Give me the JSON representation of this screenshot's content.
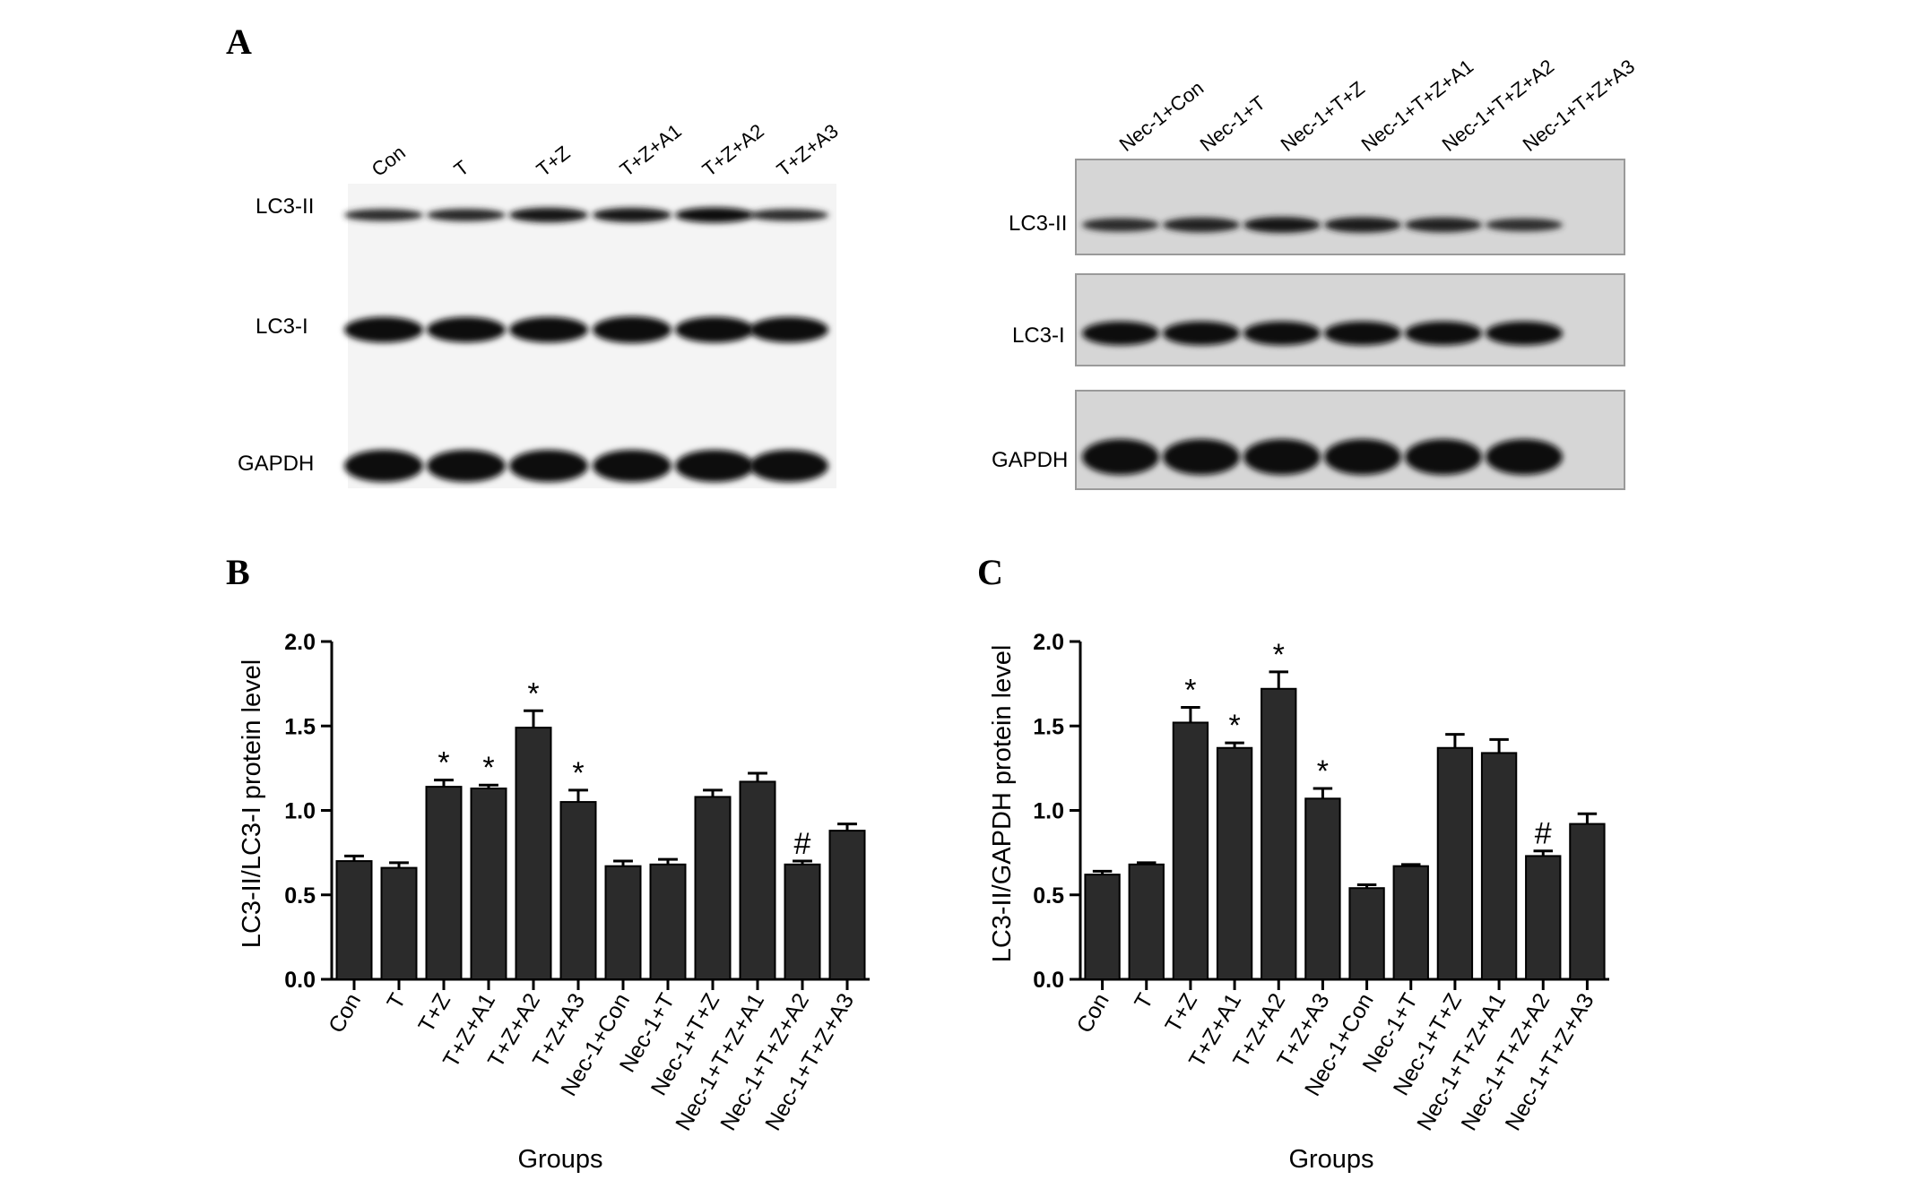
{
  "panel_letters": {
    "a": "A",
    "b": "B",
    "c": "C"
  },
  "blot_left": {
    "lanes": [
      "Con",
      "T",
      "T+Z",
      "T+Z+A1",
      "T+Z+A2",
      "T+Z+A3"
    ],
    "rows": [
      "LC3-II",
      "LC3-I",
      "GAPDH"
    ],
    "band_intensity": {
      "LC3-II": [
        0.45,
        0.5,
        0.8,
        0.78,
        0.88,
        0.45
      ],
      "LC3-I": [
        0.9,
        0.88,
        0.9,
        1.0,
        0.92,
        0.9
      ],
      "GAPDH": [
        1.0,
        1.0,
        1.0,
        1.0,
        1.0,
        1.0
      ]
    }
  },
  "blot_right": {
    "lanes": [
      "Nec-1+Con",
      "Nec-1+T",
      "Nec-1+T+Z",
      "Nec-1+T+Z+A1",
      "Nec-1+T+Z+A2",
      "Nec-1+T+Z+A3"
    ],
    "rows": [
      "LC3-II",
      "LC3-I",
      "GAPDH"
    ],
    "band_intensity": {
      "LC3-II": [
        0.45,
        0.6,
        0.75,
        0.7,
        0.6,
        0.4
      ],
      "LC3-I": [
        0.9,
        0.9,
        0.9,
        0.9,
        0.9,
        0.9
      ],
      "GAPDH": [
        1.0,
        1.0,
        1.0,
        1.0,
        1.0,
        1.0
      ]
    }
  },
  "chart_data": [
    {
      "type": "bar",
      "panel": "B",
      "categories": [
        "Con",
        "T",
        "T+Z",
        "T+Z+A1",
        "T+Z+A2",
        "T+Z+A3",
        "Nec-1+Con",
        "Nec-1+T",
        "Nec-1+T+Z",
        "Nec-1+T+Z+A1",
        "Nec-1+T+Z+A2",
        "Nec-1+T+Z+A3"
      ],
      "values": [
        0.7,
        0.66,
        1.14,
        1.13,
        1.49,
        1.05,
        0.67,
        0.68,
        1.08,
        1.17,
        0.68,
        0.88
      ],
      "errors": [
        0.03,
        0.03,
        0.04,
        0.02,
        0.1,
        0.07,
        0.03,
        0.03,
        0.04,
        0.05,
        0.02,
        0.04
      ],
      "markers": [
        "",
        "",
        "*",
        "*",
        "*",
        "*",
        "",
        "",
        "",
        "",
        "#",
        ""
      ],
      "ylabel": "LC3-II/LC3-I protein level",
      "xlabel": "Groups",
      "ylim": [
        0,
        2.0
      ],
      "yticks": [
        "0.0",
        "0.5",
        "1.0",
        "1.5",
        "2.0"
      ],
      "bar_color": "#2b2b2b",
      "grid": false
    },
    {
      "type": "bar",
      "panel": "C",
      "categories": [
        "Con",
        "T",
        "T+Z",
        "T+Z+A1",
        "T+Z+A2",
        "T+Z+A3",
        "Nec-1+Con",
        "Nec-1+T",
        "Nec-1+T+Z",
        "Nec-1+T+Z+A1",
        "Nec-1+T+Z+A2",
        "Nec-1+T+Z+A3"
      ],
      "values": [
        0.62,
        0.68,
        1.52,
        1.37,
        1.72,
        1.07,
        0.54,
        0.67,
        1.37,
        1.34,
        0.73,
        0.92
      ],
      "errors": [
        0.02,
        0.01,
        0.09,
        0.03,
        0.1,
        0.06,
        0.02,
        0.01,
        0.08,
        0.08,
        0.03,
        0.06
      ],
      "markers": [
        "",
        "",
        "*",
        "*",
        "*",
        "*",
        "",
        "",
        "",
        "",
        "#",
        ""
      ],
      "ylabel": "LC3-II/GAPDH protein level",
      "xlabel": "Groups",
      "ylim": [
        0,
        2.0
      ],
      "yticks": [
        "0.0",
        "0.5",
        "1.0",
        "1.5",
        "2.0"
      ],
      "bar_color": "#2b2b2b",
      "grid": false
    }
  ]
}
